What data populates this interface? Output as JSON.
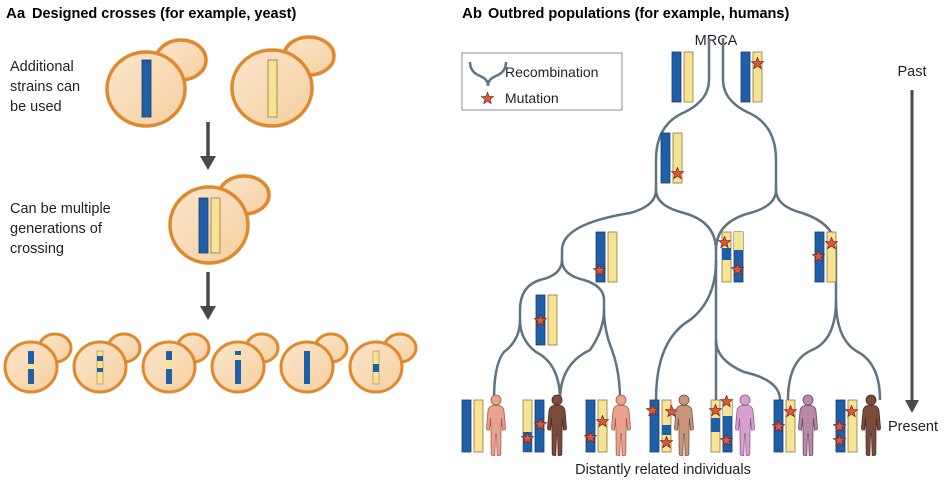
{
  "panel_a": {
    "letter": "Aa",
    "title": "Designed crosses (for example, yeast)",
    "note_1": [
      "Additional",
      "strains can",
      "be used"
    ],
    "note_2": [
      "Can be multiple",
      "generations of",
      "crossing"
    ]
  },
  "panel_b": {
    "letter": "Ab",
    "title": "Outbred populations (for example, humans)",
    "root_label": "MRCA",
    "legend": {
      "recombination": "Recombination",
      "mutation": "Mutation"
    },
    "time_axis": {
      "top": "Past",
      "bottom": "Present"
    },
    "bottom_caption": "Distantly related individuals"
  },
  "colors": {
    "chrom_blue": "#1f5fa8",
    "chrom_yellow": "#f8e394",
    "cell_fill": "#f9dcb7",
    "cell_stroke": "#e0882e",
    "tree_line": "#5f7380",
    "star_fill": "#e0573f",
    "arrow": "#454a50"
  }
}
